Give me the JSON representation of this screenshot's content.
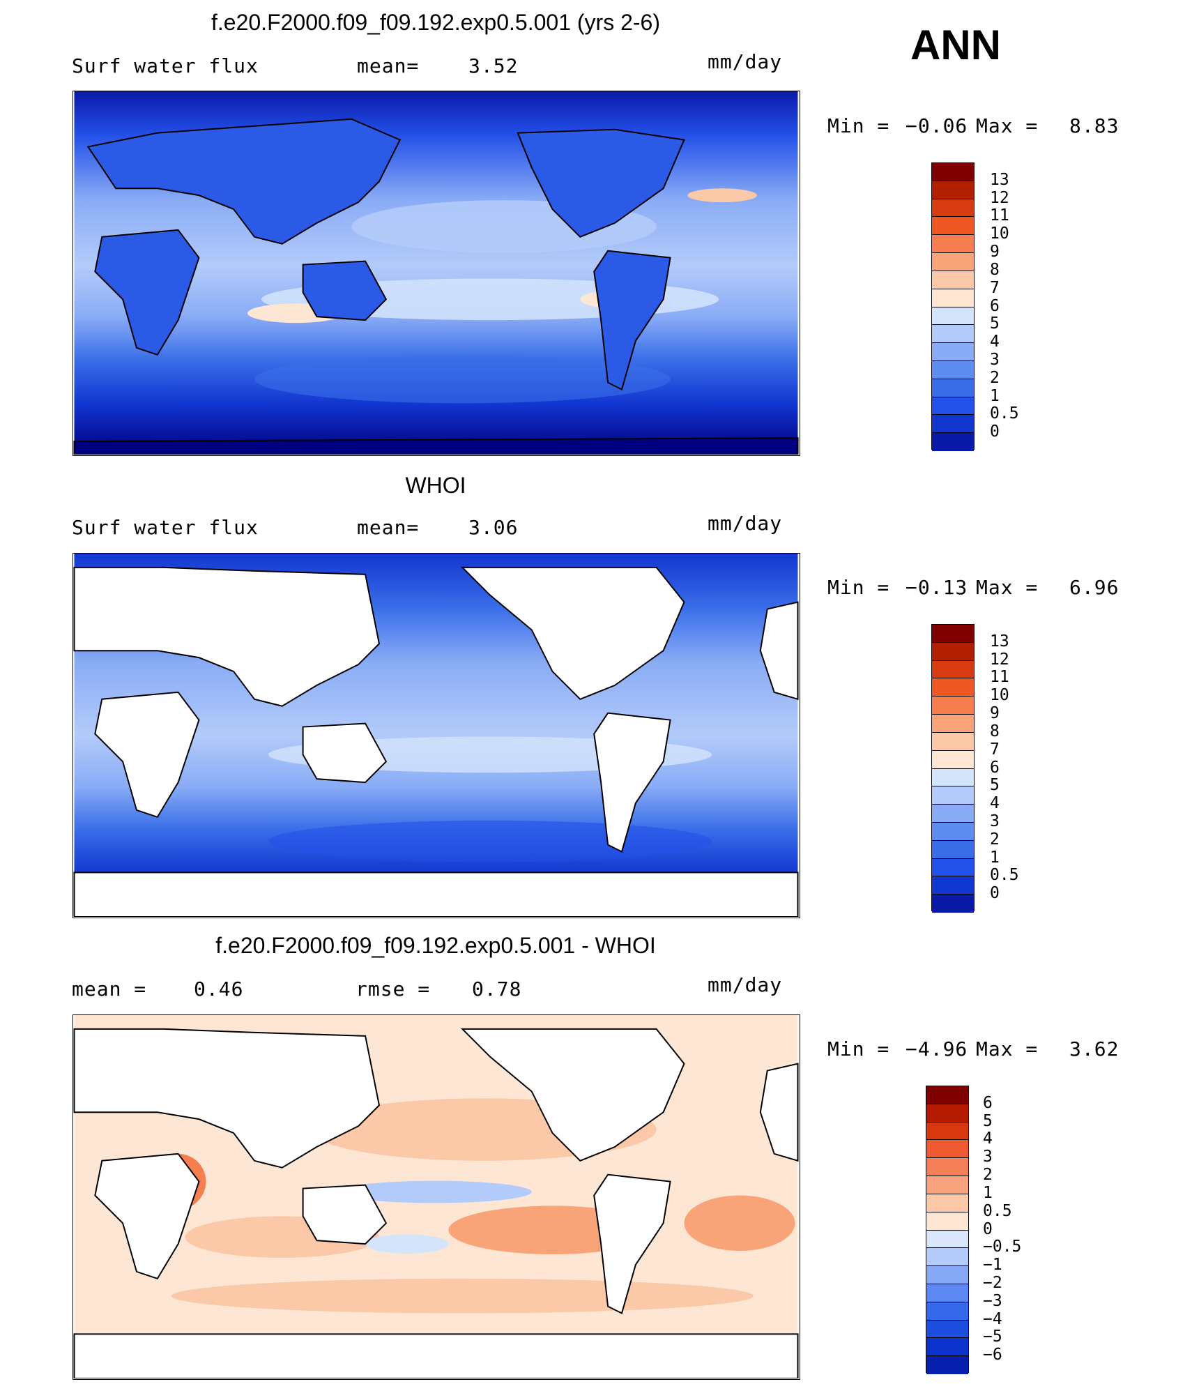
{
  "season": "ANN",
  "units": "mm/day",
  "colors": {
    "pos_scale": [
      "#00007f",
      "#0a1aa8",
      "#1236d0",
      "#2350e8",
      "#3a6ee8",
      "#5f8cf0",
      "#8aacf6",
      "#b3cbfa",
      "#d4e4fb",
      "#fde6d4",
      "#fbc8a8",
      "#f9a478",
      "#f67e4f",
      "#ef5724",
      "#d83b10",
      "#b02000",
      "#7f0000"
    ],
    "diff_scale": [
      "#00007f",
      "#061fad",
      "#0e33cc",
      "#1c4fe0",
      "#3568ea",
      "#5b88f2",
      "#87a9f5",
      "#b4cbf9",
      "#d9e6fb",
      "#fde6d4",
      "#fbc8a8",
      "#f8a37e",
      "#f4805a",
      "#ee5a30",
      "#d8380f",
      "#b51b00",
      "#7f0000"
    ],
    "land_outline": "#000000"
  },
  "panels": [
    {
      "id": "model",
      "title": "f.e20.F2000.f09_f09.192.exp0.5.001 (yrs 2-6)",
      "left_label": "Surf  water  flux",
      "stat1_label": "mean=",
      "stat1_value": "3.52",
      "stat2_label": "",
      "stat2_value": "",
      "units": "mm/day",
      "min_label": "Min  =",
      "min_value": "−0.06",
      "max_label": "Max  =",
      "max_value": "8.83",
      "colorbar_ticks": [
        "13",
        "12",
        "11",
        "10",
        "9",
        "8",
        "7",
        "6",
        "5",
        "4",
        "3",
        "2",
        "1",
        "0.5",
        "0"
      ]
    },
    {
      "id": "obs",
      "title": "WHOI",
      "left_label": "Surf  water  flux",
      "stat1_label": "mean=",
      "stat1_value": "3.06",
      "stat2_label": "",
      "stat2_value": "",
      "units": "mm/day",
      "min_label": "Min  =",
      "min_value": "−0.13",
      "max_label": "Max  =",
      "max_value": "6.96",
      "colorbar_ticks": [
        "13",
        "12",
        "11",
        "10",
        "9",
        "8",
        "7",
        "6",
        "5",
        "4",
        "3",
        "2",
        "1",
        "0.5",
        "0"
      ]
    },
    {
      "id": "diff",
      "title": "f.e20.F2000.f09_f09.192.exp0.5.001 - WHOI",
      "left_label": "mean  =",
      "stat1_label": "",
      "stat1_value": "0.46",
      "stat2_label": "rmse  =",
      "stat2_value": "0.78",
      "units": "mm/day",
      "min_label": "Min  =",
      "min_value": "−4.96",
      "max_label": "Max  =",
      "max_value": "3.62",
      "colorbar_ticks": [
        "6",
        "5",
        "4",
        "3",
        "2",
        "1",
        "0.5",
        "0",
        "−0.5",
        "−1",
        "−2",
        "−3",
        "−4",
        "−5",
        "−6"
      ]
    }
  ]
}
